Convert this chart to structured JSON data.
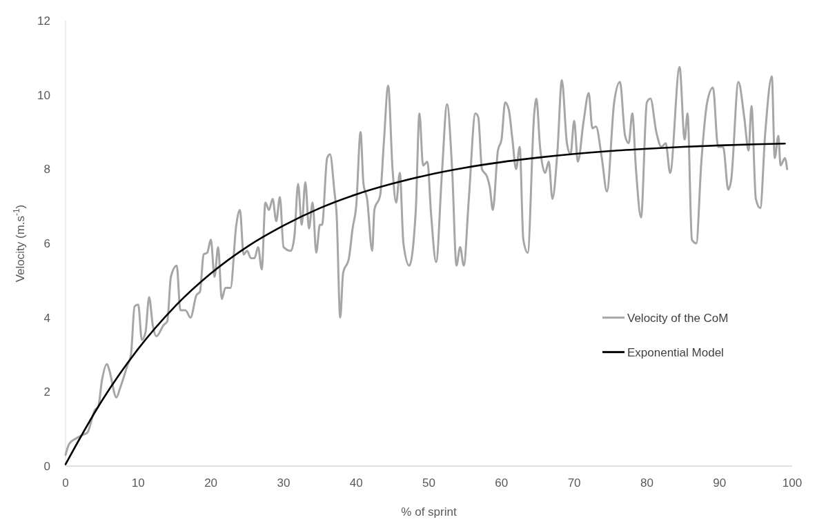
{
  "chart_data": {
    "type": "line",
    "xlabel": "% of sprint",
    "ylabel": "Velocity (m.s$^{-1}$)",
    "xlim": [
      0,
      100
    ],
    "xticks": [
      0,
      10,
      20,
      30,
      40,
      50,
      60,
      70,
      80,
      90,
      100
    ],
    "ylim": [
      0,
      12
    ],
    "yticks": [
      0,
      2,
      4,
      6,
      8,
      10,
      12
    ],
    "grid": false,
    "legend": "right",
    "marker": "none",
    "line_style": "solid",
    "series": [
      {
        "name": "Velocity of the CoM",
        "color": "#a6a6a6",
        "x": [
          0,
          0.5,
          1.5,
          2.5,
          3,
          4,
          4.5,
          5,
          5.7,
          6,
          7,
          7.5,
          8.5,
          9,
          9.5,
          10,
          10.5,
          11,
          11.5,
          12,
          12.5,
          13.5,
          14,
          14.5,
          15.3,
          15.8,
          16.5,
          17.2,
          18,
          18.5,
          19,
          19.5,
          20,
          20.5,
          21,
          21.5,
          22,
          22.7,
          23.5,
          24,
          24.5,
          25,
          25.5,
          26,
          26.5,
          27,
          27.5,
          28,
          28.5,
          29,
          29.5,
          30,
          31,
          31.5,
          32,
          32.5,
          33,
          33.5,
          34,
          34.5,
          35,
          35.3,
          36,
          36.4,
          37,
          37.3,
          37.8,
          38.2,
          39,
          39.5,
          40,
          40.6,
          41,
          41.5,
          42.2,
          42.5,
          43.3,
          43.8,
          44.4,
          45,
          45.5,
          46,
          46.5,
          47.3,
          48.2,
          48.7,
          49.2,
          49.8,
          50.3,
          51,
          51.8,
          52.5,
          53.2,
          53.8,
          54.3,
          54.8,
          55.5,
          56.4,
          56.8,
          57.3,
          58,
          58.4,
          58.8,
          59.5,
          60,
          60.5,
          61,
          61.5,
          62,
          62.5,
          63,
          63.6,
          64.5,
          64.8,
          65.3,
          66,
          66.5,
          67,
          67.7,
          68.3,
          69,
          69.5,
          70,
          70.5,
          71.3,
          72,
          72.5,
          73,
          73.8,
          74.5,
          75.5,
          76.3,
          77,
          77.5,
          78,
          78.5,
          79.2,
          80,
          80.5,
          81.3,
          82,
          82.6,
          83.2,
          84.5,
          85.2,
          85.6,
          86.2,
          86.8,
          87.5,
          88.3,
          89.1,
          89.8,
          90.5,
          91.2,
          91.6,
          92.6,
          93.4,
          94,
          94.4,
          95,
          95.6,
          96.3,
          97.2,
          97.6,
          98.1,
          98.4,
          99,
          99.3
        ],
        "values": [
          0.3,
          0.6,
          0.75,
          0.85,
          0.9,
          1.5,
          1.6,
          2.3,
          2.75,
          2.6,
          1.85,
          2.1,
          2.7,
          3.0,
          4.3,
          4.35,
          3.4,
          3.6,
          4.55,
          3.8,
          3.5,
          3.8,
          3.9,
          5.1,
          5.4,
          4.2,
          4.2,
          4.0,
          4.6,
          4.7,
          5.7,
          5.75,
          6.1,
          5.1,
          5.9,
          4.5,
          4.8,
          4.8,
          6.5,
          6.9,
          5.7,
          5.8,
          5.6,
          5.6,
          5.9,
          5.3,
          7.1,
          6.9,
          7.2,
          6.6,
          7.25,
          5.9,
          5.8,
          6.2,
          7.6,
          6.5,
          7.65,
          6.4,
          7.1,
          5.75,
          6.5,
          6.5,
          8.3,
          8.4,
          7.4,
          6.8,
          4.0,
          5.2,
          5.6,
          6.4,
          7.0,
          9.0,
          7.6,
          7.2,
          5.8,
          6.9,
          7.3,
          8.7,
          10.25,
          8.0,
          7.1,
          7.9,
          6.0,
          5.4,
          6.9,
          9.5,
          8.1,
          8.2,
          6.8,
          5.5,
          7.9,
          9.75,
          8.0,
          5.4,
          5.9,
          5.4,
          7.2,
          9.5,
          9.4,
          8.0,
          7.8,
          7.5,
          6.9,
          8.5,
          8.8,
          9.8,
          9.6,
          8.8,
          8.0,
          8.6,
          6.1,
          5.75,
          9.5,
          9.9,
          8.6,
          7.9,
          8.2,
          7.2,
          8.5,
          10.4,
          8.7,
          8.4,
          9.3,
          8.2,
          9.3,
          10.05,
          9.1,
          9.15,
          8.3,
          7.4,
          9.8,
          10.35,
          8.9,
          8.7,
          9.5,
          8.0,
          6.7,
          9.8,
          9.9,
          9.0,
          8.6,
          8.7,
          7.9,
          10.75,
          8.8,
          9.5,
          6.1,
          6.0,
          8.2,
          9.8,
          10.2,
          8.6,
          8.6,
          7.45,
          7.7,
          10.35,
          9.4,
          8.5,
          9.7,
          7.2,
          6.95,
          9.0,
          10.5,
          8.3,
          8.9,
          8.1,
          8.3,
          8.0
        ]
      },
      {
        "name": "Exponential Model",
        "color": "#000000",
        "x": [
          0,
          5,
          10,
          15,
          20,
          25,
          30,
          35,
          40,
          45,
          50,
          55,
          60,
          65,
          70,
          75,
          80,
          85,
          90,
          95,
          99
        ],
        "values": [
          0.05,
          1.76,
          3.16,
          4.29,
          5.19,
          5.91,
          6.48,
          6.95,
          7.32,
          7.61,
          7.85,
          8.04,
          8.19,
          8.31,
          8.41,
          8.49,
          8.55,
          8.6,
          8.64,
          8.67,
          8.69
        ]
      }
    ]
  }
}
